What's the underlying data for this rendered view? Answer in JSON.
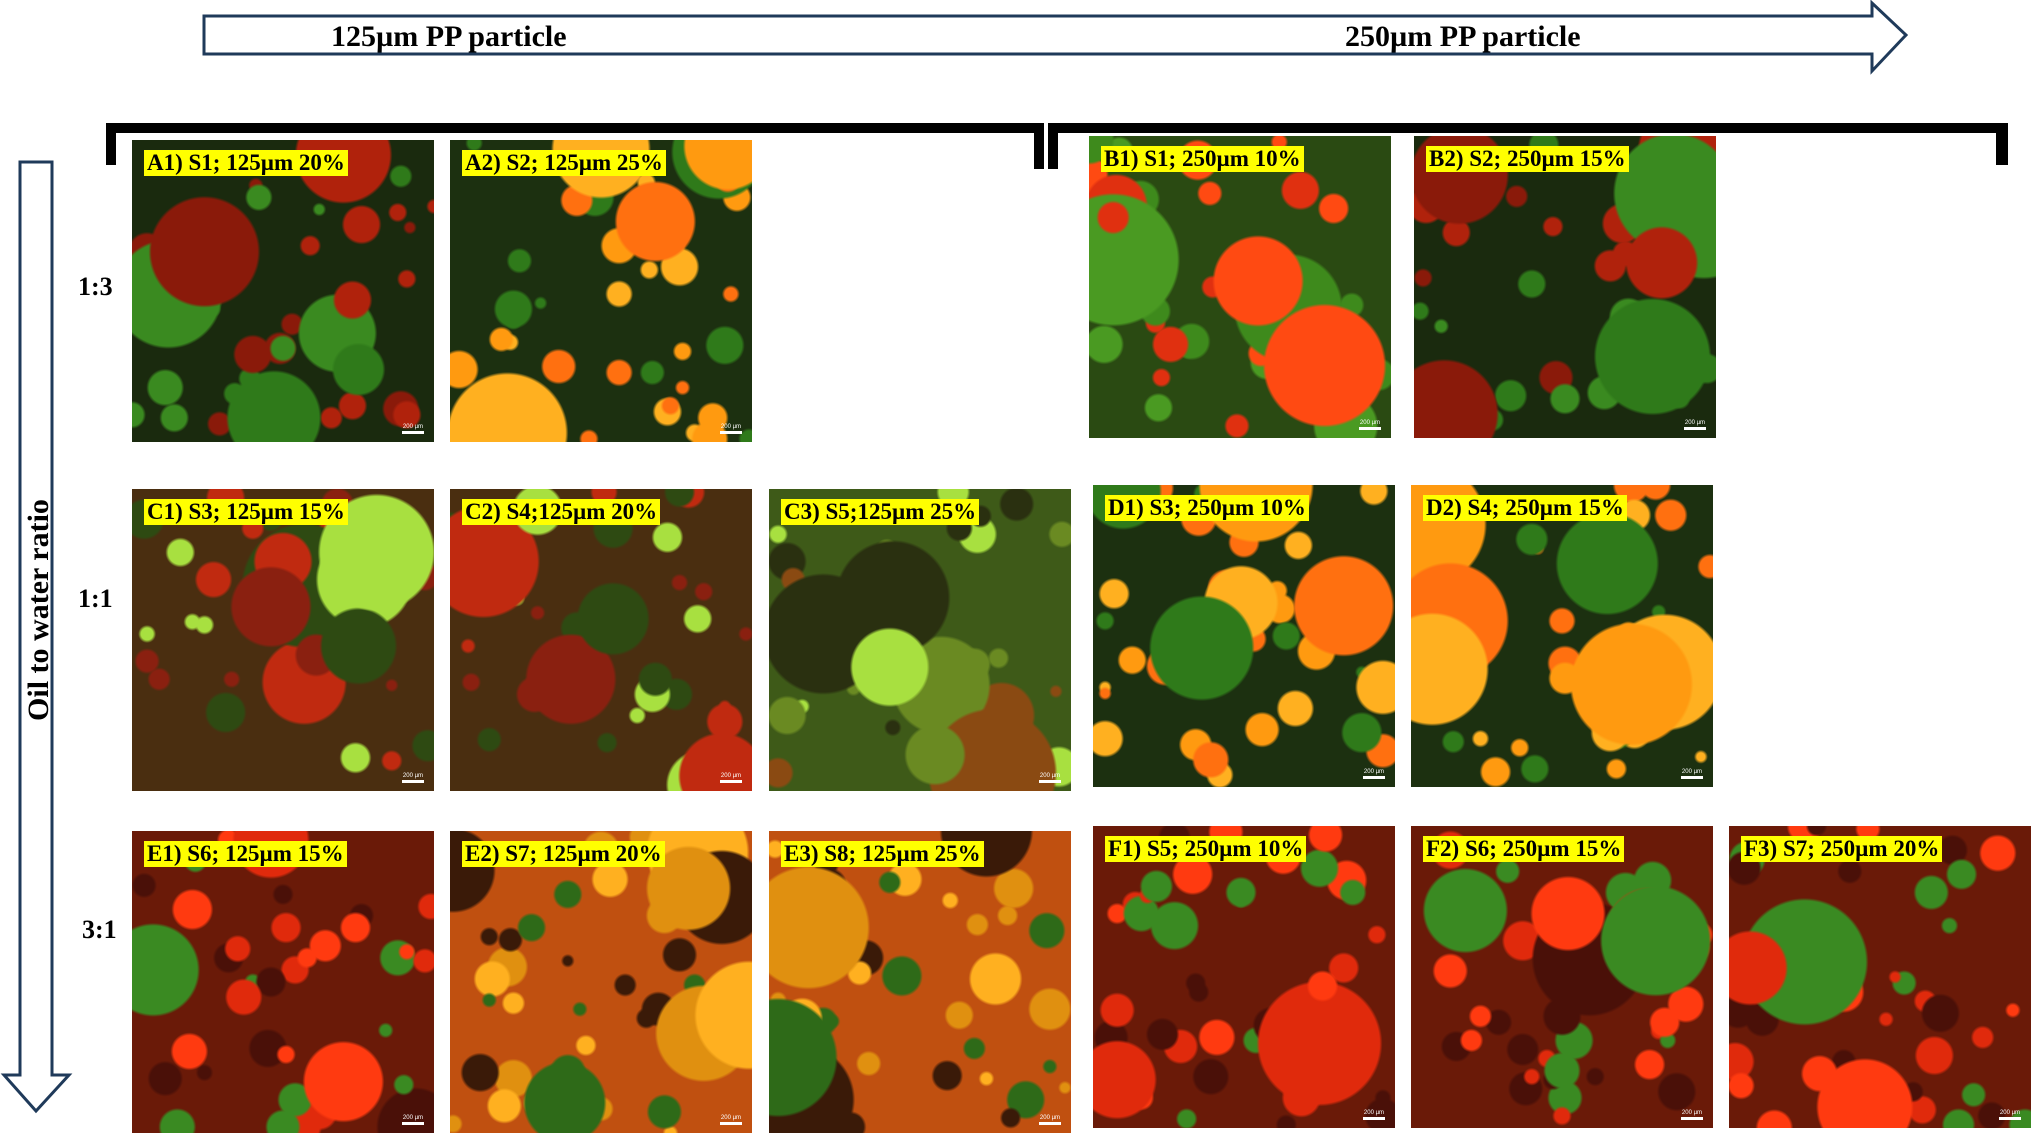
{
  "header": {
    "left_label": "125µm PP particle",
    "right_label": "250µm PP particle"
  },
  "axis_label": "Oil to water ratio",
  "rows": [
    "1:3",
    "1:1",
    "3:1"
  ],
  "scale_bar": "200 µm",
  "panels": [
    {
      "label": "A1) S1; 125µm 20%"
    },
    {
      "label": "A2) S2; 125µm 25%"
    },
    {
      "label": "B1) S1; 250µm 10%"
    },
    {
      "label": "B2) S2; 250µm 15%"
    },
    {
      "label": "C1) S3; 125µm 15%"
    },
    {
      "label": "C2) S4;125µm 20%"
    },
    {
      "label": "C3) S5;125µm 25%"
    },
    {
      "label": "D1) S3; 250µm 10%"
    },
    {
      "label": "D2) S4; 250µm 15%"
    },
    {
      "label": "E1) S6; 125µm 15%"
    },
    {
      "label": "E2) S7; 125µm 20%"
    },
    {
      "label": "E3) S8; 125µm 25%"
    },
    {
      "label": "F1) S5; 250µm 10%"
    },
    {
      "label": "F2) S6; 250µm 15%"
    },
    {
      "label": "F3) S7; 250µm 20%"
    }
  ]
}
